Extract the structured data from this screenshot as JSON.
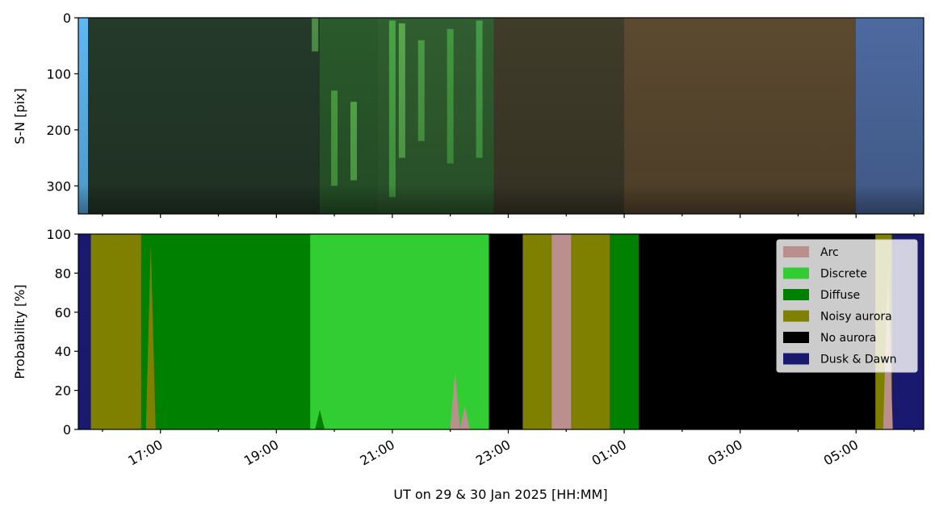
{
  "chart_data": [
    {
      "type": "heatmap",
      "description_role": "keogram",
      "ylabel": "S-N [pix]",
      "ylim": [
        350,
        0
      ],
      "yticks": [
        0,
        100,
        200,
        300
      ],
      "ytick_labels": [
        "0",
        "100",
        "200",
        "300"
      ],
      "x_range_hours_ut": [
        "15:35",
        "06:10"
      ],
      "bands": [
        {
          "start": "15:35",
          "end": "15:45",
          "color": "#5fb8f0"
        },
        {
          "start": "15:45",
          "end": "19:45",
          "color": "#253a2a"
        },
        {
          "start": "19:45",
          "end": "20:45",
          "color": "#2a5a2c"
        },
        {
          "start": "20:45",
          "end": "22:45",
          "color": "#305e30"
        },
        {
          "start": "22:45",
          "end": "01:00",
          "color": "#3f3c2a"
        },
        {
          "start": "01:00",
          "end": "05:00",
          "color": "#5c4a30"
        },
        {
          "start": "05:00",
          "end": "06:10",
          "color": "#4d6aa0"
        }
      ],
      "streaks": [
        {
          "time": "20:00",
          "top": 130,
          "bottom": 300,
          "color": "#66dd55"
        },
        {
          "time": "20:20",
          "top": 150,
          "bottom": 290,
          "color": "#7ef06a"
        },
        {
          "time": "21:00",
          "top": 5,
          "bottom": 320,
          "color": "#5ee05a"
        },
        {
          "time": "21:10",
          "top": 10,
          "bottom": 250,
          "color": "#7be56a"
        },
        {
          "time": "21:30",
          "top": 40,
          "bottom": 220,
          "color": "#62d055"
        },
        {
          "time": "22:00",
          "top": 20,
          "bottom": 260,
          "color": "#56c84e"
        },
        {
          "time": "22:30",
          "top": 5,
          "bottom": 250,
          "color": "#58d05a"
        },
        {
          "time": "19:40",
          "top": 0,
          "bottom": 60,
          "color": "#6fd060"
        }
      ],
      "grid": false
    },
    {
      "type": "area",
      "stacked": true,
      "ylabel": "Probability [%]",
      "xlabel": "UT on 29 & 30 Jan 2025 [HH:MM]",
      "ylim": [
        0,
        100
      ],
      "yticks": [
        0,
        20,
        40,
        60,
        80,
        100
      ],
      "ytick_labels": [
        "0",
        "20",
        "40",
        "60",
        "80",
        "100"
      ],
      "xticks": [
        "17:00",
        "19:00",
        "21:00",
        "23:00",
        "01:00",
        "03:00",
        "05:00"
      ],
      "legend_placement": "top-right",
      "grid": false,
      "series": [
        {
          "name": "Arc",
          "color": "#bc8f8f"
        },
        {
          "name": "Discrete",
          "color": "#32cd32"
        },
        {
          "name": "Diffuse",
          "color": "#008000"
        },
        {
          "name": "Noisy aurora",
          "color": "#808000"
        },
        {
          "name": "No aurora",
          "color": "#000000"
        },
        {
          "name": "Dusk & Dawn",
          "color": "#191970"
        }
      ],
      "segments": [
        {
          "start": "15:35",
          "end": "15:48",
          "class": "Dusk & Dawn"
        },
        {
          "start": "15:48",
          "end": "16:40",
          "class": "Noisy aurora"
        },
        {
          "start": "16:40",
          "end": "19:35",
          "class": "Diffuse"
        },
        {
          "start": "19:35",
          "end": "22:40",
          "class": "Discrete"
        },
        {
          "start": "22:40",
          "end": "23:15",
          "class": "No aurora"
        },
        {
          "start": "23:15",
          "end": "23:45",
          "class": "Noisy aurora"
        },
        {
          "start": "23:45",
          "end": "00:05",
          "class": "Arc"
        },
        {
          "start": "00:05",
          "end": "00:45",
          "class": "Noisy aurora"
        },
        {
          "start": "00:45",
          "end": "01:15",
          "class": "Diffuse"
        },
        {
          "start": "01:15",
          "end": "05:20",
          "class": "No aurora"
        },
        {
          "start": "05:20",
          "end": "05:37",
          "class": "Noisy aurora"
        },
        {
          "start": "05:37",
          "end": "06:10",
          "class": "Dusk & Dawn"
        }
      ],
      "spikes": [
        {
          "time": "22:05",
          "class": "Arc",
          "value": 30
        },
        {
          "time": "22:15",
          "class": "Arc",
          "value": 12
        },
        {
          "time": "23:50",
          "class": "Arc",
          "value": 75
        },
        {
          "time": "05:30",
          "class": "Noisy aurora",
          "value": 18
        },
        {
          "time": "05:33",
          "class": "Arc",
          "value": 80
        },
        {
          "time": "16:50",
          "class": "Noisy aurora",
          "value": 95
        },
        {
          "time": "19:45",
          "class": "Diffuse",
          "value": 10
        }
      ]
    }
  ]
}
